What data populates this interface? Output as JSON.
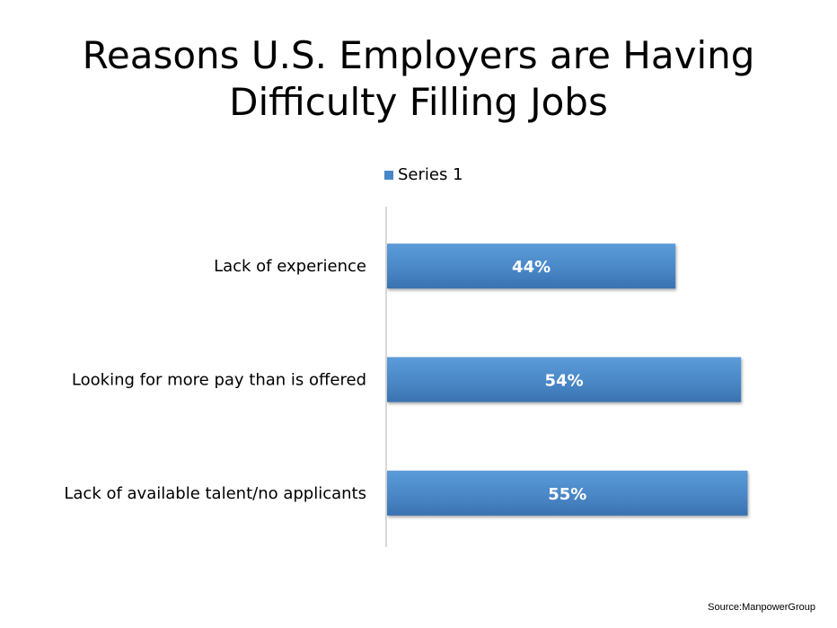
{
  "chart_data": {
    "type": "bar",
    "orientation": "horizontal",
    "title_lines": [
      "Reasons U.S. Employers are Having",
      "Difficulty Filling Jobs"
    ],
    "categories": [
      "Lack of experience",
      "Looking for more pay than is offered",
      "Lack of available talent/no applicants"
    ],
    "series": [
      {
        "name": "Series 1",
        "values": [
          44,
          54,
          55
        ],
        "labels": [
          "44%",
          "54%",
          "55%"
        ],
        "color": "#4a87c7"
      }
    ],
    "xlim": [
      0,
      60
    ],
    "legend_position": "top",
    "grid": false
  },
  "source": "Source:ManpowerGroup"
}
